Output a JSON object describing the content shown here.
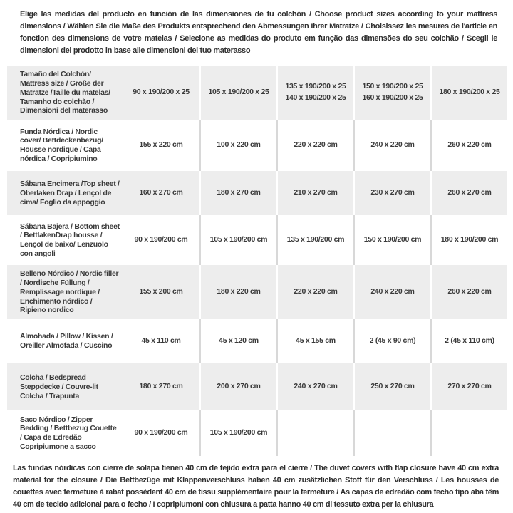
{
  "header": {
    "text": "Elige las medidas del producto en función de las dimensiones de tu colchón / Choose product sizes according to your mattress dimensions / Wählen Sie die Maße des Produkts entsprechend den Abmessungen Ihrer Matratze / Choisissez les mesures de l'article en fonction des dimensions de votre matelas / Selecione as medidas do produto em função das dimensões do seu colchão / Scegli le dimensioni del prodotto in base alle dimensioni del tuo materasso"
  },
  "colors": {
    "row_alt_bg": "#ededed",
    "divider_on_gray": "#ffffff",
    "divider_on_white": "#d8d8d8",
    "text": "#333333"
  },
  "table": {
    "rows": [
      {
        "label": "Tamaño del Colchón/ Mattress size / Größe der Matratze /Taille du matelas/ Tamanho do colchão / Dimensioni del materasso",
        "cells": [
          "90 x 190/200 x 25",
          "105 x 190/200 x 25",
          "135 x 190/200 x 25\n140 x 190/200 x 25",
          "150 x 190/200 x 25\n160 x 190/200 x 25",
          "180 x 190/200 x 25"
        ]
      },
      {
        "label": "Funda Nórdica /  Nordic cover/ Bettdeckenbezug/ Housse nordique  / Capa nórdica / Copripiumino",
        "cells": [
          "155 x 220 cm",
          "100 x 220 cm",
          "220 x 220 cm",
          "240 x 220 cm",
          "260 x 220 cm"
        ]
      },
      {
        "label": "Sábana Encimera /Top sheet / Oberlaken Drap / Lençol de cima/ Foglio da appoggio",
        "cells": [
          "160 x 270 cm",
          "180 x 270 cm",
          "210 x 270 cm",
          "230 x 270 cm",
          "260 x 270 cm"
        ]
      },
      {
        "label": "Sábana Bajera / Bottom sheet / BettlakenDrap housse / Lençol de baixo/ Lenzuolo con angoli",
        "cells": [
          "90 x 190/200 cm",
          "105 x 190/200 cm",
          "135 x 190/200 cm",
          "150 x 190/200 cm",
          "180 x 190/200 cm"
        ]
      },
      {
        "label": "Belleno Nórdico / Nordic filler / Nordische Füllung / Remplissage nordique / Enchimento nórdico / Ripieno nordico",
        "cells": [
          "155 x 200 cm",
          "180 x 220 cm",
          "220 x 220 cm",
          "240 x 220 cm",
          "260 x 220 cm"
        ]
      },
      {
        "label": "Almohada  / Pillow / Kissen / Oreiller Almofada / Cuscino",
        "cells": [
          "45 x 110 cm",
          "45 x 120 cm",
          "45 x 155 cm",
          "2 (45 x 90 cm)",
          "2 (45 x 110 cm)"
        ]
      },
      {
        "label": "Colcha / Bedspread Steppdecke / Couvre-lit Colcha / Trapunta",
        "cells": [
          "180 x 270 cm",
          "200 x 270 cm",
          "240 x 270 cm",
          "250 x 270 cm",
          "270 x 270 cm"
        ]
      },
      {
        "label": "Saco Nórdico / Zipper Bedding / Bettbezug Couette  / Capa de Edredão Copripiumone a sacco",
        "cells": [
          "90 x 190/200 cm",
          "105 x 190/200 cm",
          "",
          "",
          ""
        ]
      }
    ]
  },
  "footer": {
    "text": "Las fundas nórdicas con cierre de solapa tienen 40 cm de tejido extra para el cierre  /  The duvet covers with flap closure have 40 cm extra material for the closure / Die Bettbezüge mit Klappenverschluss haben 40 cm zusätzlichen Stoff für den Verschluss / Les housses de couettes avec fermeture à rabat possèdent 40 cm de tissu supplémentaire pour la fermeture / As capas de edredão com fecho tipo aba têm 40 cm de tecido adicional para o fecho / I copripiumoni con chiusura a patta hanno 40 cm di tessuto extra per la chiusura"
  }
}
